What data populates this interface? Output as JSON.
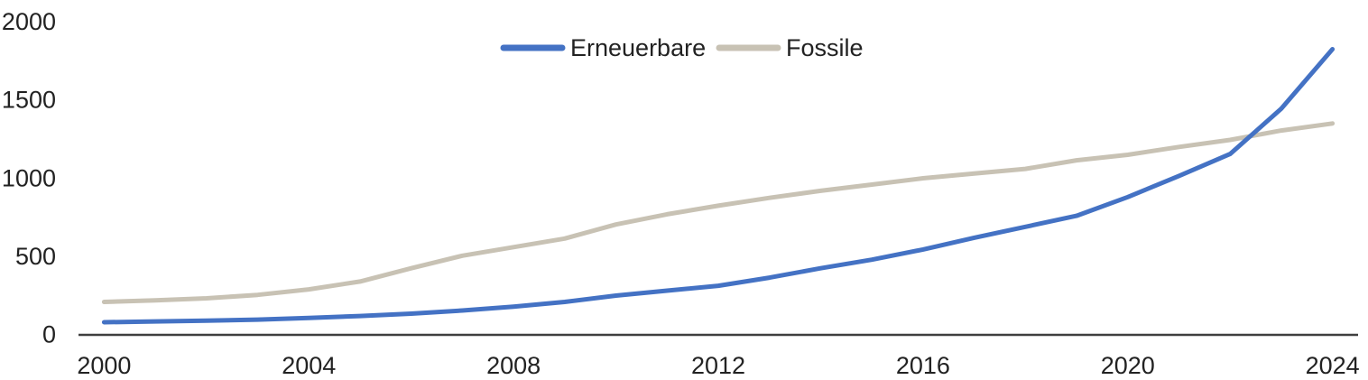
{
  "chart_data": {
    "type": "line",
    "title": "",
    "xlabel": "",
    "ylabel": "",
    "x": [
      2000,
      2001,
      2002,
      2003,
      2004,
      2005,
      2006,
      2007,
      2008,
      2009,
      2010,
      2011,
      2012,
      2013,
      2014,
      2015,
      2016,
      2017,
      2018,
      2019,
      2020,
      2021,
      2022,
      2023,
      2024
    ],
    "series": [
      {
        "name": "Erneuerbare",
        "color": "#4472C4",
        "values": [
          75,
          80,
          85,
          92,
          102,
          115,
          130,
          150,
          175,
          205,
          245,
          277,
          308,
          360,
          420,
          475,
          540,
          615,
          685,
          755,
          875,
          1010,
          1150,
          1440,
          1820
        ]
      },
      {
        "name": "Fossile",
        "color": "#C8C2B4",
        "values": [
          205,
          215,
          228,
          250,
          285,
          335,
          420,
          500,
          555,
          610,
          700,
          765,
          820,
          870,
          915,
          955,
          995,
          1025,
          1055,
          1110,
          1145,
          1195,
          1240,
          1300,
          1345
        ]
      }
    ],
    "ylim": [
      0,
      2000
    ],
    "yticks": [
      0,
      500,
      1000,
      1500,
      2000
    ],
    "xticks": [
      2000,
      2004,
      2008,
      2012,
      2016,
      2020,
      2024
    ],
    "grid": false,
    "legend_position": "top-center",
    "axis_color": "#3F3F3F",
    "text_color": "#222222"
  }
}
